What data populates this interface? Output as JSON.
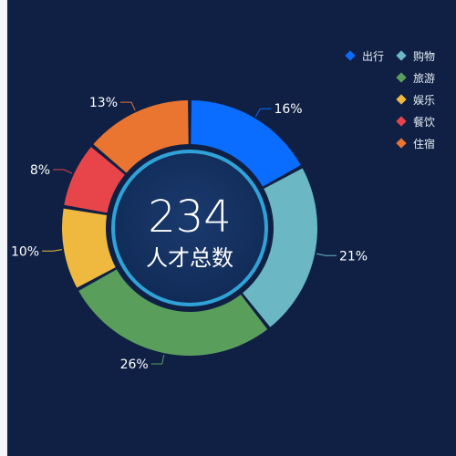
{
  "chart_data": {
    "type": "pie",
    "donut": true,
    "center": {
      "value": "234",
      "label": "人才总数"
    },
    "series": [
      {
        "name": "出行",
        "value": 16,
        "label": "16%",
        "color": "#0a6dff"
      },
      {
        "name": "购物",
        "value": 21,
        "label": "21%",
        "color": "#6bb8c4"
      },
      {
        "name": "旅游",
        "value": 26,
        "label": "26%",
        "color": "#5a9e5c"
      },
      {
        "name": "娱乐",
        "value": 10,
        "label": "10%",
        "color": "#efb93f"
      },
      {
        "name": "餐饮",
        "value": 8,
        "label": "8%",
        "color": "#e8454a"
      },
      {
        "name": "住宿",
        "value": 13,
        "label": "13%",
        "color": "#ea7530"
      }
    ],
    "legend_position": "top-right"
  }
}
